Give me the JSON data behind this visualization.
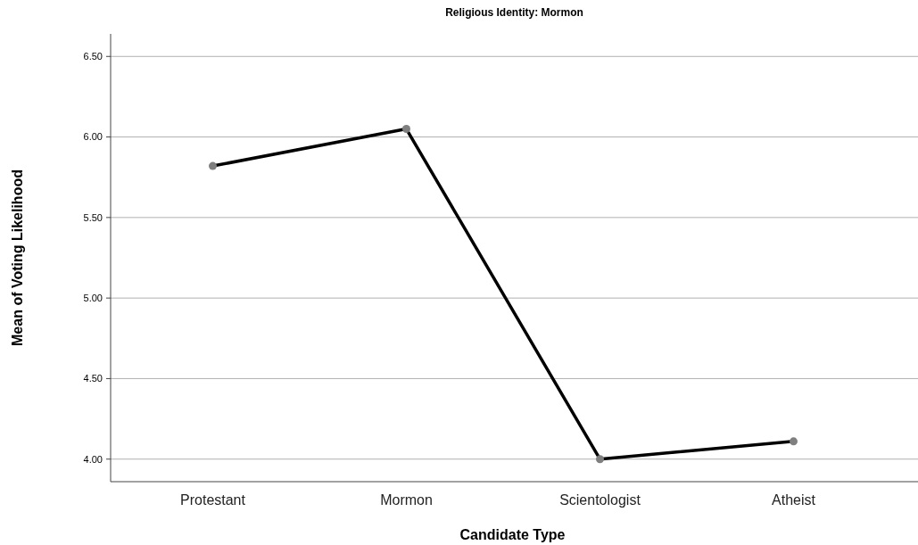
{
  "chart_data": {
    "type": "line",
    "title": "Religious Identity: Mormon",
    "xlabel": "Candidate Type",
    "ylabel": "Mean of Voting Likelihood",
    "categories": [
      "Protestant",
      "Mormon",
      "Scientologist",
      "Atheist"
    ],
    "series": [
      {
        "color": "#000000",
        "values": [
          5.82,
          6.05,
          4.0,
          4.11
        ]
      }
    ],
    "ylim": [
      3.86,
      6.64
    ],
    "yticks": [
      {
        "value": 4,
        "label": "4.00"
      },
      {
        "value": 4.5,
        "label": "4.50"
      },
      {
        "value": 5,
        "label": "5.00"
      },
      {
        "value": 5.5,
        "label": "5.50"
      },
      {
        "value": 6,
        "label": "6.00"
      },
      {
        "value": 6.5,
        "label": "6.50"
      }
    ],
    "grid": "y",
    "marker": "circle",
    "line_style": "solid"
  }
}
